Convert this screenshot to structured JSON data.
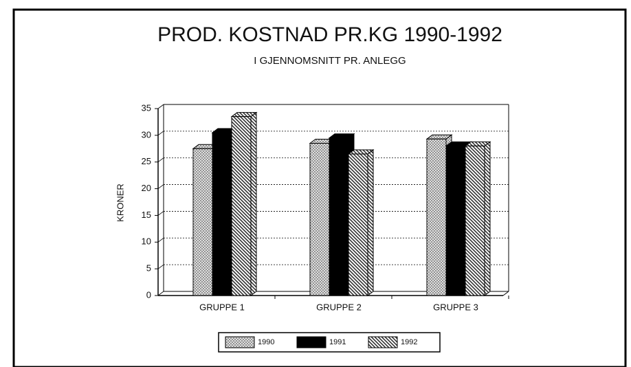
{
  "chart_data": {
    "type": "bar",
    "title": "PROD. KOSTNAD PR.KG 1990-1992",
    "subtitle": "I GJENNOMSNITT PR. ANLEGG",
    "y_label": "KRONER",
    "categories": [
      "GRUPPE 1",
      "GRUPPE 2",
      "GRUPPE 3"
    ],
    "series": [
      {
        "name": "1990",
        "color": "#8a8a8a",
        "values": [
          27.5,
          28.5,
          29.3
        ]
      },
      {
        "name": "1991",
        "color": "#000000",
        "values": [
          30.5,
          29.5,
          28
        ]
      },
      {
        "name": "1992",
        "color": "#333333",
        "values": [
          33.5,
          26.5,
          28
        ]
      }
    ],
    "ylim": [
      0,
      35
    ],
    "yticks": [
      0,
      5,
      10,
      15,
      20,
      25,
      30,
      35
    ],
    "grid": true
  }
}
